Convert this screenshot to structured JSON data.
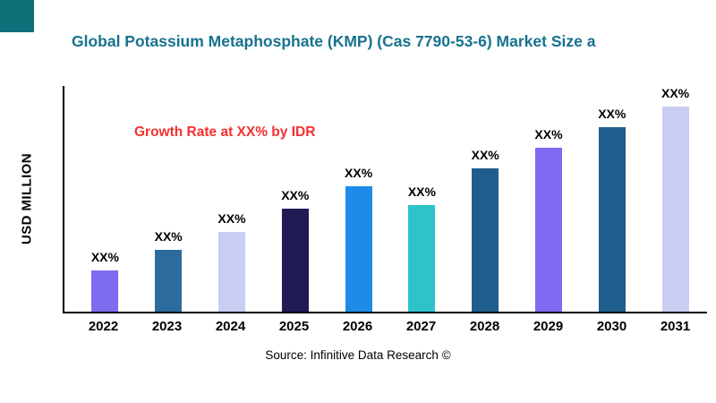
{
  "chart_data": {
    "type": "bar",
    "title": "Global Potassium Metaphosphate (KMP) (Cas 7790-53-6) Market Size a",
    "title_color": "#17728f",
    "ylabel": "USD MILLION",
    "xlabel": "",
    "annotation": "Growth Rate at XX% by IDR",
    "annotation_color": "#f43030",
    "source": "Source: Infinitive Data Research ©",
    "accent_square_color": "#0d7079",
    "axis_color": "#000000",
    "grid": false,
    "legend": "none",
    "categories": [
      "2022",
      "2023",
      "2024",
      "2025",
      "2026",
      "2027",
      "2028",
      "2029",
      "2030",
      "2031"
    ],
    "values": [
      20,
      30,
      39,
      50,
      61,
      52,
      70,
      80,
      90,
      100
    ],
    "values_note": "relative heights estimated from pixels; no numeric y-axis shown, every bar is labeled XX%",
    "data_labels": [
      "XX%",
      "XX%",
      "XX%",
      "XX%",
      "XX%",
      "XX%",
      "XX%",
      "XX%",
      "XX%",
      "XX%"
    ],
    "bar_colors": [
      "#7b6cf0",
      "#2c6b9e",
      "#c9cdf2",
      "#1e1b55",
      "#1d8ce8",
      "#2cc3c9",
      "#1f5d8c",
      "#7e6bf2",
      "#1f5d8c",
      "#c9cdf2"
    ]
  }
}
